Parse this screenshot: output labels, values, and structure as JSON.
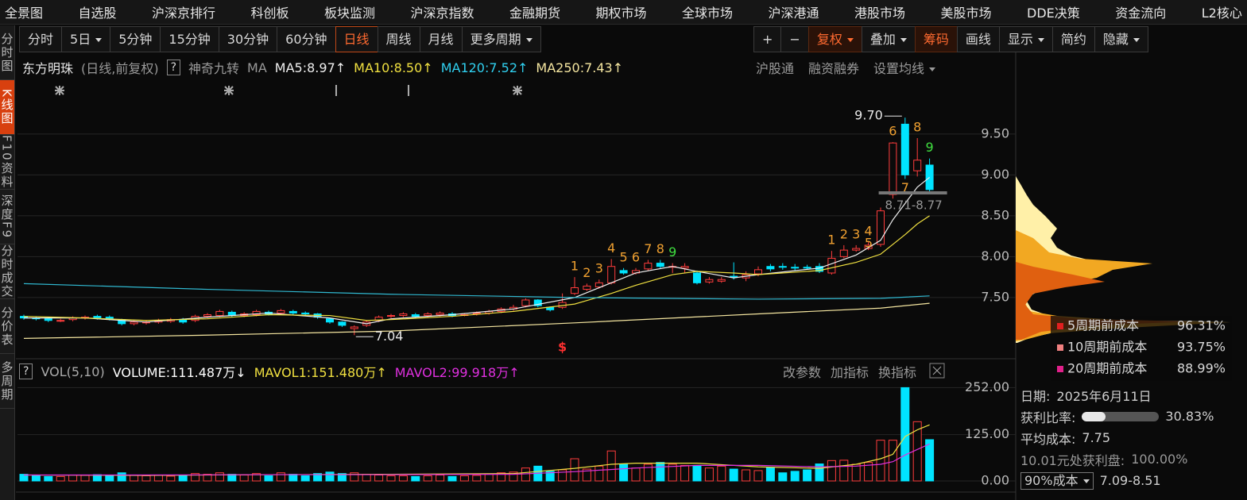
{
  "top_menu": [
    "全景图",
    "自选股",
    "沪深京排行",
    "科创板",
    "板块监测",
    "沪深京指数",
    "金融期货",
    "期权市场",
    "全球市场",
    "沪深港通",
    "港股市场",
    "美股市场",
    "DDE决策",
    "资金流向",
    "L2核心"
  ],
  "side_tabs": [
    "分时图",
    "K线图",
    "F10资料",
    "深度F9",
    "分时成交",
    "分价表",
    "多周期"
  ],
  "side_active": 1,
  "periods": [
    "分时",
    "5日",
    "5分钟",
    "15分钟",
    "30分钟",
    "60分钟",
    "日线",
    "周线",
    "月线",
    "更多周期"
  ],
  "period_active": 6,
  "period_dropdown": [
    1,
    9
  ],
  "tools": [
    "+",
    "−",
    "复权",
    "叠加",
    "筹码",
    "画线",
    "显示",
    "简约",
    "隐藏"
  ],
  "tools_dropdown": [
    2,
    3,
    6,
    8
  ],
  "tools_highlight": [
    2,
    4
  ],
  "stock": {
    "name": "东方明珠",
    "mode": "(日线,前复权)",
    "help": "?",
    "nine": "神奇九转",
    "ma": "MA",
    "ma_labels": [
      {
        "text": "MA5:8.97↑",
        "color": "#eeeeee"
      },
      {
        "text": "MA10:8.50↑",
        "color": "#f0e040"
      },
      {
        "text": "MA120:7.52↑",
        "color": "#30d0f0"
      },
      {
        "text": "MA250:7.43↑",
        "color": "#f5e6a0"
      }
    ],
    "links": [
      "沪股通",
      "融资融券",
      "设置均线"
    ]
  },
  "chart_data": {
    "type": "candlestick",
    "ylim": [
      6.8,
      10.1
    ],
    "yticks": [
      {
        "value": 7.5,
        "label": "7.50"
      },
      {
        "value": 8,
        "label": "8.00"
      },
      {
        "value": 8.5,
        "label": "8.50"
      },
      {
        "value": 9,
        "label": "9.00"
      },
      {
        "value": 9.5,
        "label": "9.50"
      }
    ],
    "grid": true,
    "up_color": "#ff3c3c",
    "down_color": "#00e4ff",
    "candles": [
      [
        7.27,
        7.25,
        7.29,
        7.23
      ],
      [
        7.25,
        7.24,
        7.27,
        7.22
      ],
      [
        7.24,
        7.22,
        7.26,
        7.2
      ],
      [
        7.22,
        7.22,
        7.24,
        7.2
      ],
      [
        7.23,
        7.25,
        7.27,
        7.21
      ],
      [
        7.25,
        7.26,
        7.28,
        7.23
      ],
      [
        7.27,
        7.25,
        7.29,
        7.23
      ],
      [
        7.26,
        7.24,
        7.28,
        7.22
      ],
      [
        7.23,
        7.18,
        7.24,
        7.16
      ],
      [
        7.18,
        7.2,
        7.22,
        7.16
      ],
      [
        7.19,
        7.2,
        7.22,
        7.17
      ],
      [
        7.2,
        7.22,
        7.24,
        7.18
      ],
      [
        7.21,
        7.23,
        7.25,
        7.19
      ],
      [
        7.23,
        7.2,
        7.25,
        7.18
      ],
      [
        7.22,
        7.27,
        7.29,
        7.2
      ],
      [
        7.27,
        7.29,
        7.31,
        7.25
      ],
      [
        7.28,
        7.33,
        7.35,
        7.26
      ],
      [
        7.32,
        7.28,
        7.34,
        7.26
      ],
      [
        7.28,
        7.3,
        7.32,
        7.26
      ],
      [
        7.29,
        7.33,
        7.35,
        7.27
      ],
      [
        7.32,
        7.3,
        7.34,
        7.28
      ],
      [
        7.31,
        7.34,
        7.36,
        7.29
      ],
      [
        7.33,
        7.31,
        7.35,
        7.29
      ],
      [
        7.31,
        7.3,
        7.33,
        7.28
      ],
      [
        7.3,
        7.26,
        7.31,
        7.24
      ],
      [
        7.24,
        7.2,
        7.25,
        7.18
      ],
      [
        7.2,
        7.16,
        7.21,
        7.14
      ],
      [
        7.12,
        7.14,
        7.16,
        7.04
      ],
      [
        7.16,
        7.2,
        7.22,
        7.14
      ],
      [
        7.22,
        7.26,
        7.28,
        7.2
      ],
      [
        7.27,
        7.28,
        7.3,
        7.25
      ],
      [
        7.28,
        7.3,
        7.32,
        7.26
      ],
      [
        7.29,
        7.27,
        7.31,
        7.25
      ],
      [
        7.28,
        7.3,
        7.32,
        7.26
      ],
      [
        7.29,
        7.31,
        7.33,
        7.27
      ],
      [
        7.3,
        7.28,
        7.32,
        7.26
      ],
      [
        7.29,
        7.29,
        7.31,
        7.27
      ],
      [
        7.3,
        7.31,
        7.33,
        7.28
      ],
      [
        7.31,
        7.33,
        7.35,
        7.29
      ],
      [
        7.33,
        7.36,
        7.38,
        7.31
      ],
      [
        7.36,
        7.38,
        7.41,
        7.34
      ],
      [
        7.4,
        7.47,
        7.49,
        7.38
      ],
      [
        7.47,
        7.4,
        7.48,
        7.38
      ],
      [
        7.38,
        7.35,
        7.39,
        7.33
      ],
      [
        7.38,
        7.44,
        7.55,
        7.36
      ],
      [
        7.55,
        7.62,
        7.75,
        7.53
      ],
      [
        7.6,
        7.64,
        7.67,
        7.58
      ],
      [
        7.63,
        7.68,
        7.72,
        7.61
      ],
      [
        7.68,
        7.88,
        7.97,
        7.66
      ],
      [
        7.83,
        7.8,
        7.86,
        7.78
      ],
      [
        7.8,
        7.83,
        7.86,
        7.78
      ],
      [
        7.85,
        7.92,
        7.96,
        7.83
      ],
      [
        7.92,
        7.88,
        7.96,
        7.86
      ],
      [
        7.88,
        7.88,
        7.92,
        7.8
      ],
      [
        7.86,
        7.88,
        7.92,
        7.8
      ],
      [
        7.8,
        7.68,
        7.83,
        7.66
      ],
      [
        7.69,
        7.72,
        7.75,
        7.67
      ],
      [
        7.7,
        7.72,
        7.75,
        7.68
      ],
      [
        7.76,
        7.75,
        7.93,
        7.72
      ],
      [
        7.74,
        7.78,
        7.82,
        7.7
      ],
      [
        7.79,
        7.84,
        7.88,
        7.76
      ],
      [
        7.88,
        7.85,
        7.91,
        7.82
      ],
      [
        7.88,
        7.87,
        7.92,
        7.84
      ],
      [
        7.87,
        7.86,
        7.91,
        7.83
      ],
      [
        7.87,
        7.86,
        7.9,
        7.84
      ],
      [
        7.88,
        7.82,
        7.92,
        7.8
      ],
      [
        7.8,
        7.98,
        8.07,
        7.78
      ],
      [
        8.0,
        8.08,
        8.14,
        7.98
      ],
      [
        8.08,
        8.1,
        8.14,
        8.06
      ],
      [
        8.1,
        8.14,
        8.18,
        8.08
      ],
      [
        8.15,
        8.56,
        8.6,
        8.12
      ],
      [
        8.76,
        9.39,
        9.4,
        8.71
      ],
      [
        9.62,
        9.0,
        9.7,
        8.95
      ],
      [
        9.05,
        9.18,
        9.45,
        8.98
      ],
      [
        9.12,
        8.82,
        9.2,
        8.77
      ]
    ],
    "ma_lines": [
      {
        "color": "#eeeeee",
        "x": [
          0,
          5,
          10,
          15,
          20,
          25,
          28,
          30,
          35,
          40,
          45,
          48,
          50,
          53,
          55,
          58,
          60,
          65,
          68,
          70,
          71,
          72,
          73,
          74
        ],
        "values": [
          7.25,
          7.25,
          7.2,
          7.26,
          7.31,
          7.25,
          7.18,
          7.24,
          7.29,
          7.36,
          7.5,
          7.68,
          7.8,
          7.88,
          7.82,
          7.74,
          7.78,
          7.86,
          8.02,
          8.2,
          8.45,
          8.65,
          8.85,
          8.97
        ]
      },
      {
        "color": "#f0e040",
        "x": [
          0,
          5,
          10,
          15,
          20,
          25,
          28,
          30,
          35,
          40,
          45,
          48,
          50,
          53,
          55,
          58,
          60,
          65,
          68,
          70,
          71,
          72,
          73,
          74
        ],
        "values": [
          7.27,
          7.25,
          7.22,
          7.24,
          7.29,
          7.28,
          7.22,
          7.23,
          7.27,
          7.33,
          7.42,
          7.55,
          7.65,
          7.78,
          7.82,
          7.8,
          7.78,
          7.83,
          7.93,
          8.03,
          8.15,
          8.27,
          8.4,
          8.5
        ]
      },
      {
        "color": "#30b8d0",
        "x": [
          0,
          15,
          30,
          45,
          60,
          70,
          74
        ],
        "values": [
          7.67,
          7.6,
          7.54,
          7.5,
          7.48,
          7.49,
          7.52
        ]
      },
      {
        "color": "#f5e6a0",
        "x": [
          0,
          15,
          30,
          45,
          60,
          70,
          74
        ],
        "values": [
          7.0,
          7.04,
          7.09,
          7.19,
          7.3,
          7.37,
          7.43
        ]
      }
    ],
    "td": [
      {
        "i": 45,
        "label": "1",
        "pos": "above",
        "color": "#f0a030"
      },
      {
        "i": 46,
        "label": "2",
        "pos": "above",
        "color": "#f0a030"
      },
      {
        "i": 47,
        "label": "3",
        "pos": "above",
        "color": "#f0a030"
      },
      {
        "i": 48,
        "label": "4",
        "pos": "above",
        "color": "#f0a030"
      },
      {
        "i": 49,
        "label": "5",
        "pos": "above",
        "color": "#f0a030"
      },
      {
        "i": 50,
        "label": "6",
        "pos": "above",
        "color": "#f0a030"
      },
      {
        "i": 51,
        "label": "7",
        "pos": "above",
        "color": "#f0a030"
      },
      {
        "i": 52,
        "label": "8",
        "pos": "above",
        "color": "#f0a030"
      },
      {
        "i": 53,
        "label": "9",
        "pos": "above",
        "color": "#40e040"
      },
      {
        "i": 66,
        "label": "1",
        "pos": "above",
        "color": "#f0a030"
      },
      {
        "i": 67,
        "label": "2",
        "pos": "above",
        "color": "#f0a030"
      },
      {
        "i": 68,
        "label": "3",
        "pos": "above",
        "color": "#f0a030"
      },
      {
        "i": 69,
        "label": "4",
        "pos": "above",
        "color": "#f0a030"
      },
      {
        "i": 70,
        "label": "5",
        "pos": "left",
        "color": "#f0a030"
      },
      {
        "i": 71,
        "label": "6",
        "pos": "above",
        "color": "#f0a030"
      },
      {
        "i": 72,
        "label": "7",
        "pos": "below",
        "color": "#f0a030"
      },
      {
        "i": 73,
        "label": "8",
        "pos": "above",
        "color": "#f0a030"
      },
      {
        "i": 74,
        "label": "9",
        "pos": "above",
        "color": "#40e040"
      }
    ],
    "high_label": {
      "i": 72,
      "text": "9.70"
    },
    "low_label": {
      "i": 27,
      "text": "7.04"
    },
    "range_note": "8.71-8.77",
    "signal": {
      "i": 44,
      "text": "$"
    },
    "volume": {
      "type": "bar",
      "ylim": [
        0,
        300
      ],
      "yticks": [
        {
          "value": 0,
          "label": "0.00"
        },
        {
          "value": 125,
          "label": "125.00"
        },
        {
          "value": 252,
          "label": "252.00"
        }
      ],
      "values": [
        18,
        14,
        12,
        12,
        16,
        15,
        17,
        14,
        22,
        16,
        14,
        15,
        13,
        16,
        20,
        18,
        22,
        18,
        16,
        20,
        14,
        22,
        18,
        14,
        20,
        24,
        20,
        22,
        18,
        16,
        14,
        14,
        12,
        14,
        16,
        12,
        14,
        15,
        18,
        22,
        24,
        35,
        40,
        26,
        30,
        60,
        32,
        40,
        81,
        45,
        35,
        45,
        50,
        45,
        42,
        42,
        35,
        40,
        32,
        30,
        28,
        36,
        22,
        26,
        30,
        46,
        55,
        56,
        45,
        50,
        110,
        110,
        252,
        160,
        111.487
      ],
      "ma_lines": [
        {
          "color": "#f0e040",
          "x": [
            0,
            10,
            20,
            30,
            40,
            45,
            48,
            50,
            55,
            60,
            65,
            68,
            70,
            71,
            72,
            73,
            74
          ],
          "values": [
            16,
            15,
            17,
            18,
            20,
            34,
            45,
            48,
            48,
            38,
            34,
            45,
            60,
            72,
            120,
            138,
            151.48
          ]
        },
        {
          "color": "#e030e0",
          "x": [
            0,
            10,
            20,
            30,
            40,
            45,
            50,
            55,
            60,
            65,
            68,
            70,
            71,
            72,
            73,
            74
          ],
          "values": [
            16,
            16,
            17,
            17,
            18,
            25,
            35,
            42,
            42,
            38,
            40,
            45,
            52,
            70,
            85,
            99.918
          ]
        }
      ],
      "header": {
        "help": "?",
        "name": "VOL(5,10)",
        "items": [
          {
            "text": "VOLUME:111.487万↓",
            "color": "#ffffff"
          },
          {
            "text": "MAVOL1:151.480万↑",
            "color": "#f0e040"
          },
          {
            "text": "MAVOL2:99.918万↑",
            "color": "#e030e0"
          }
        ],
        "links": [
          "改参数",
          "加指标",
          "换指标"
        ]
      }
    }
  },
  "chips": {
    "legend": [
      {
        "name": "5周期前成本",
        "value": "96.31%",
        "color": "#e02020"
      },
      {
        "name": "10周期前成本",
        "value": "93.75%",
        "color": "#f08080"
      },
      {
        "name": "20周期前成本",
        "value": "88.99%",
        "color": "#e0208a"
      }
    ],
    "date_label": "日期:",
    "date": "2025年6月11日",
    "profit_label": "获利比率:",
    "profit": {
      "value": 30.83,
      "label": "30.83%"
    },
    "avg_label": "平均成本:",
    "avg": "7.75",
    "profit_at": "10.01元处获利盘:",
    "profit_at_value": "100.00%",
    "cost_select": "90%成本",
    "cost_range": "7.09-8.51"
  }
}
